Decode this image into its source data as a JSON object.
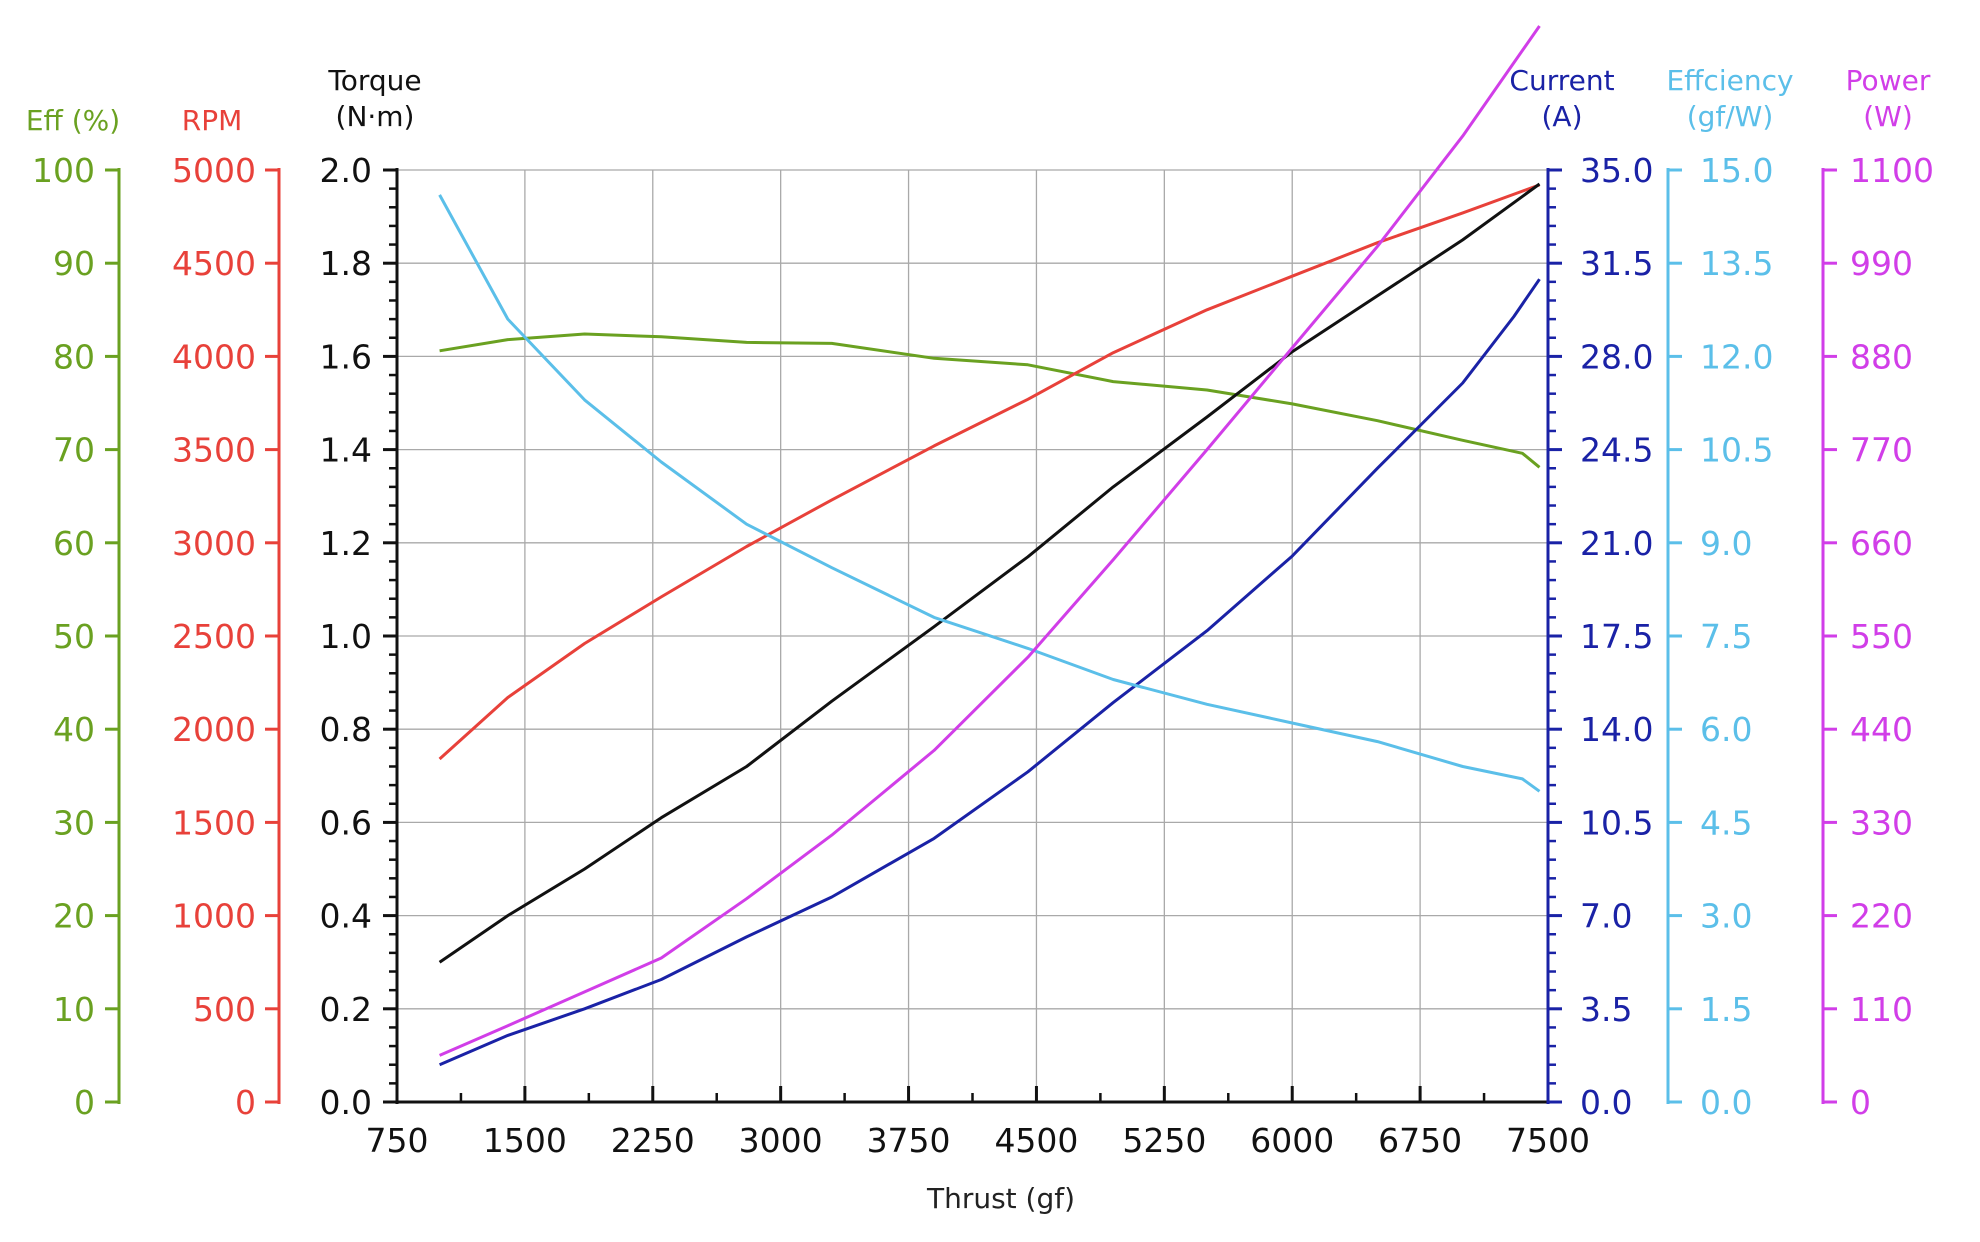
{
  "chart_data": {
    "type": "line",
    "xlabel": "Thrust (gf)",
    "xlim": [
      750,
      7500
    ],
    "xticks": [
      "750",
      "1500",
      "2250",
      "3000",
      "3750",
      "4500",
      "5250",
      "6000",
      "6750",
      "7500"
    ],
    "axes": [
      {
        "id": "eff",
        "side": "left",
        "title": [
          "Eff (%)"
        ],
        "color": "#6aa121",
        "min": 0,
        "max": 100,
        "ticks": [
          "0",
          "10",
          "20",
          "30",
          "40",
          "50",
          "60",
          "70",
          "80",
          "90",
          "100"
        ]
      },
      {
        "id": "rpm",
        "side": "left",
        "title": [
          "RPM"
        ],
        "color": "#e8413a",
        "min": 0,
        "max": 5000,
        "ticks": [
          "0",
          "500",
          "1000",
          "1500",
          "2000",
          "2500",
          "3000",
          "3500",
          "4000",
          "4500",
          "5000"
        ]
      },
      {
        "id": "torque",
        "side": "left",
        "title": [
          "Torque",
          "(N·m)"
        ],
        "color": "#111111",
        "min": 0,
        "max": 2.0,
        "ticks": [
          "0.0",
          "0.2",
          "0.4",
          "0.6",
          "0.8",
          "1.0",
          "1.2",
          "1.4",
          "1.6",
          "1.8",
          "2.0"
        ]
      },
      {
        "id": "current",
        "side": "right",
        "title": [
          "Current",
          "(A)"
        ],
        "color": "#1a22a6",
        "min": 0,
        "max": 35,
        "ticks": [
          "0.0",
          "3.5",
          "7.0",
          "10.5",
          "14.0",
          "17.5",
          "21.0",
          "24.5",
          "28.0",
          "31.5",
          "35.0"
        ]
      },
      {
        "id": "efficiency",
        "side": "right",
        "title": [
          "Effciency",
          "(gf/W)"
        ],
        "color": "#5bbfe9",
        "min": 0,
        "max": 15,
        "ticks": [
          "0.0",
          "1.5",
          "3.0",
          "4.5",
          "6.0",
          "7.5",
          "9.0",
          "10.5",
          "12.0",
          "13.5",
          "15.0"
        ]
      },
      {
        "id": "power",
        "side": "right",
        "title": [
          "Power",
          "(W)"
        ],
        "color": "#d13ee8",
        "min": 0,
        "max": 1100,
        "ticks": [
          "0",
          "110",
          "220",
          "330",
          "440",
          "550",
          "660",
          "770",
          "880",
          "990",
          "1100"
        ]
      }
    ],
    "grid": true,
    "series": [
      {
        "axis": "eff",
        "color": "#6aa121",
        "x": [
          1000,
          1400,
          1850,
          2300,
          2800,
          3300,
          3900,
          4450,
          4950,
          5500,
          6000,
          6500,
          7000,
          7350,
          7450
        ],
        "y": [
          80.6,
          81.8,
          82.4,
          82.1,
          81.5,
          81.4,
          79.8,
          79.1,
          77.3,
          76.4,
          74.9,
          73.1,
          71.0,
          69.6,
          68.1
        ]
      },
      {
        "axis": "rpm",
        "color": "#e8413a",
        "x": [
          1000,
          1400,
          1850,
          2300,
          2800,
          3300,
          3900,
          4450,
          4950,
          5500,
          6000,
          6500,
          7000,
          7450
        ],
        "y": [
          1840,
          2170,
          2460,
          2710,
          2980,
          3230,
          3520,
          3770,
          4020,
          4250,
          4430,
          4610,
          4770,
          4920
        ]
      },
      {
        "axis": "torque",
        "color": "#111111",
        "x": [
          1000,
          1400,
          1850,
          2300,
          2800,
          3300,
          3900,
          4450,
          4950,
          5500,
          6000,
          6500,
          7000,
          7450
        ],
        "y": [
          0.3,
          0.4,
          0.5,
          0.61,
          0.72,
          0.86,
          1.02,
          1.17,
          1.32,
          1.47,
          1.61,
          1.73,
          1.85,
          1.97
        ]
      },
      {
        "axis": "current",
        "color": "#1a22a6",
        "x": [
          1000,
          1400,
          1850,
          2300,
          2800,
          3300,
          3900,
          4450,
          4950,
          5500,
          6000,
          6500,
          7000,
          7300,
          7450
        ],
        "y": [
          1.4,
          2.5,
          3.5,
          4.6,
          6.2,
          7.7,
          9.9,
          12.4,
          15.0,
          17.7,
          20.5,
          23.8,
          27.0,
          29.5,
          30.9
        ]
      },
      {
        "axis": "efficiency",
        "color": "#5bbfe9",
        "x": [
          1000,
          1400,
          1850,
          2300,
          2800,
          3300,
          3900,
          4450,
          4950,
          5500,
          6000,
          6500,
          7000,
          7350,
          7450
        ],
        "y": [
          14.6,
          12.6,
          11.3,
          10.3,
          9.3,
          8.6,
          7.8,
          7.3,
          6.8,
          6.4,
          6.1,
          5.8,
          5.4,
          5.2,
          5.0
        ]
      },
      {
        "axis": "power",
        "color": "#d13ee8",
        "x": [
          1000,
          1400,
          1850,
          2300,
          2800,
          3300,
          3900,
          4450,
          4950,
          5500,
          6000,
          6500,
          7000,
          7450
        ],
        "y": [
          55,
          90,
          130,
          170,
          240,
          315,
          415,
          525,
          640,
          770,
          890,
          1010,
          1140,
          1270
        ]
      }
    ]
  }
}
